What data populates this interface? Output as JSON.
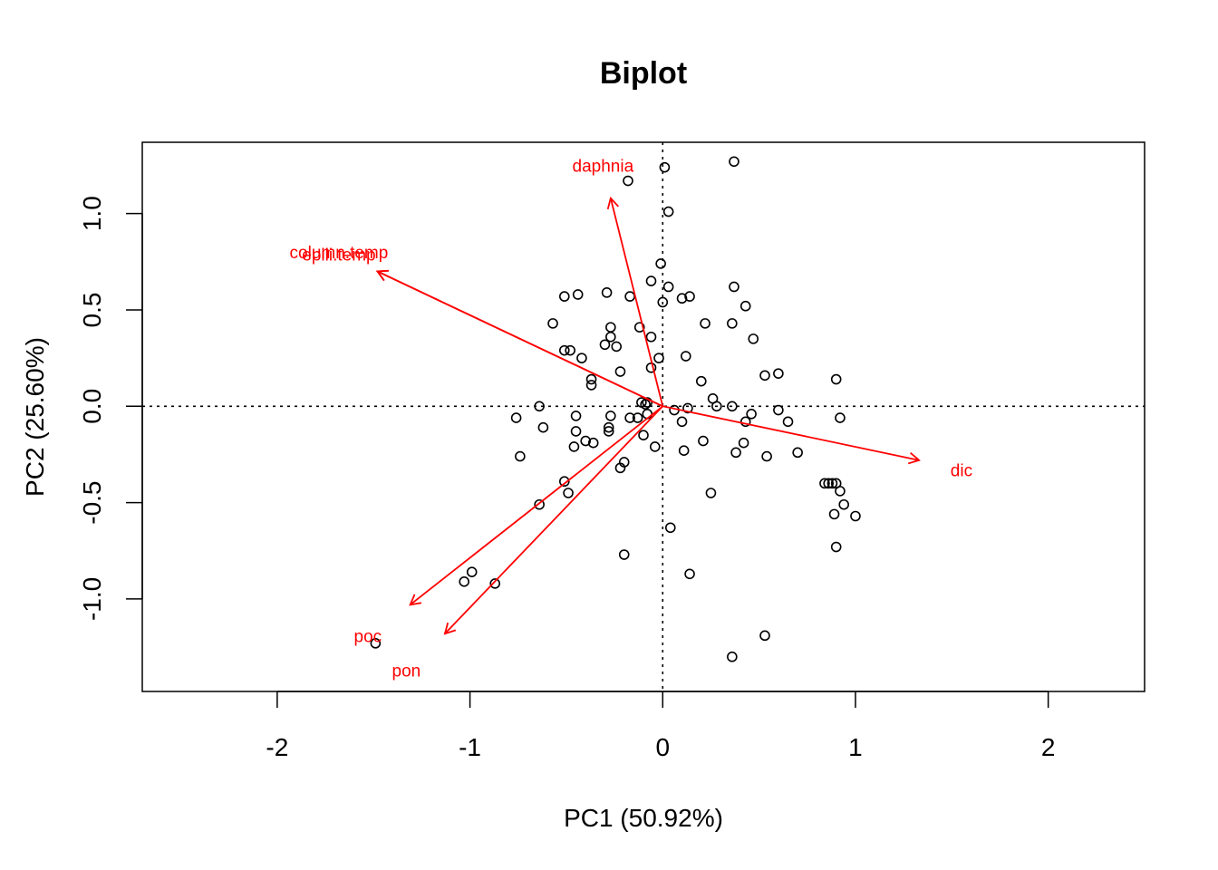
{
  "chart_data": {
    "type": "scatter",
    "title": "Biplot",
    "xlabel": "PC1 (50.92%)",
    "ylabel": "PC2 (25.60%)",
    "xlim": [
      -2.7,
      2.5
    ],
    "ylim": [
      -1.48,
      1.37
    ],
    "x_ticks": [
      -2,
      -1,
      0,
      1,
      2
    ],
    "x_tick_labels": [
      "-2",
      "-1",
      "0",
      "1",
      "2"
    ],
    "y_ticks": [
      -1.0,
      -0.5,
      0.0,
      0.5,
      1.0
    ],
    "y_tick_labels": [
      "-1.0",
      "-0.5",
      "0.0",
      "0.5",
      "1.0"
    ],
    "reference_lines": {
      "x": 0,
      "y": 0,
      "style": "dotted"
    },
    "arrow_color": "#ff0000",
    "point_color": "#000000",
    "points": [
      {
        "x": 0.01,
        "y": 1.24
      },
      {
        "x": 0.37,
        "y": 1.27
      },
      {
        "x": -0.18,
        "y": 1.17
      },
      {
        "x": 0.03,
        "y": 1.01
      },
      {
        "x": -0.01,
        "y": 0.74
      },
      {
        "x": -0.06,
        "y": 0.65
      },
      {
        "x": 0.03,
        "y": 0.62
      },
      {
        "x": 0.37,
        "y": 0.62
      },
      {
        "x": -0.51,
        "y": 0.57
      },
      {
        "x": -0.44,
        "y": 0.58
      },
      {
        "x": -0.29,
        "y": 0.59
      },
      {
        "x": -0.17,
        "y": 0.57
      },
      {
        "x": 0.0,
        "y": 0.54
      },
      {
        "x": 0.1,
        "y": 0.56
      },
      {
        "x": 0.14,
        "y": 0.57
      },
      {
        "x": 0.43,
        "y": 0.52
      },
      {
        "x": -0.57,
        "y": 0.43
      },
      {
        "x": -0.27,
        "y": 0.41
      },
      {
        "x": -0.12,
        "y": 0.41
      },
      {
        "x": 0.22,
        "y": 0.43
      },
      {
        "x": 0.36,
        "y": 0.43
      },
      {
        "x": -0.27,
        "y": 0.36
      },
      {
        "x": -0.06,
        "y": 0.36
      },
      {
        "x": 0.47,
        "y": 0.35
      },
      {
        "x": -0.3,
        "y": 0.32
      },
      {
        "x": -0.24,
        "y": 0.31
      },
      {
        "x": -0.51,
        "y": 0.29
      },
      {
        "x": -0.48,
        "y": 0.29
      },
      {
        "x": -0.42,
        "y": 0.25
      },
      {
        "x": -0.02,
        "y": 0.25
      },
      {
        "x": 0.12,
        "y": 0.26
      },
      {
        "x": -0.22,
        "y": 0.18
      },
      {
        "x": -0.06,
        "y": 0.2
      },
      {
        "x": 0.53,
        "y": 0.16
      },
      {
        "x": 0.6,
        "y": 0.17
      },
      {
        "x": 0.9,
        "y": 0.14
      },
      {
        "x": -0.37,
        "y": 0.14
      },
      {
        "x": -0.37,
        "y": 0.11
      },
      {
        "x": 0.2,
        "y": 0.13
      },
      {
        "x": -0.11,
        "y": 0.02
      },
      {
        "x": -0.09,
        "y": 0.01
      },
      {
        "x": -0.08,
        "y": 0.02
      },
      {
        "x": -0.64,
        "y": 0.0
      },
      {
        "x": 0.13,
        "y": -0.01
      },
      {
        "x": 0.26,
        "y": 0.04
      },
      {
        "x": 0.28,
        "y": 0.0
      },
      {
        "x": 0.36,
        "y": 0.0
      },
      {
        "x": 0.06,
        "y": -0.02
      },
      {
        "x": 0.6,
        "y": -0.02
      },
      {
        "x": 0.46,
        "y": -0.04
      },
      {
        "x": -0.08,
        "y": -0.04
      },
      {
        "x": -0.76,
        "y": -0.06
      },
      {
        "x": -0.45,
        "y": -0.05
      },
      {
        "x": -0.27,
        "y": -0.05
      },
      {
        "x": -0.17,
        "y": -0.06
      },
      {
        "x": -0.13,
        "y": -0.06
      },
      {
        "x": 0.1,
        "y": -0.08
      },
      {
        "x": 0.43,
        "y": -0.08
      },
      {
        "x": 0.65,
        "y": -0.08
      },
      {
        "x": 0.92,
        "y": -0.06
      },
      {
        "x": -0.62,
        "y": -0.11
      },
      {
        "x": -0.28,
        "y": -0.11
      },
      {
        "x": -0.28,
        "y": -0.13
      },
      {
        "x": -0.45,
        "y": -0.13
      },
      {
        "x": -0.1,
        "y": -0.15
      },
      {
        "x": -0.4,
        "y": -0.18
      },
      {
        "x": -0.36,
        "y": -0.19
      },
      {
        "x": 0.21,
        "y": -0.18
      },
      {
        "x": 0.42,
        "y": -0.19
      },
      {
        "x": -0.46,
        "y": -0.21
      },
      {
        "x": -0.04,
        "y": -0.21
      },
      {
        "x": 0.11,
        "y": -0.23
      },
      {
        "x": 0.38,
        "y": -0.24
      },
      {
        "x": 0.7,
        "y": -0.24
      },
      {
        "x": 0.54,
        "y": -0.26
      },
      {
        "x": -0.74,
        "y": -0.26
      },
      {
        "x": -0.2,
        "y": -0.29
      },
      {
        "x": -0.22,
        "y": -0.32
      },
      {
        "x": -0.51,
        "y": -0.39
      },
      {
        "x": -0.49,
        "y": -0.45
      },
      {
        "x": 0.84,
        "y": -0.4
      },
      {
        "x": 0.86,
        "y": -0.4
      },
      {
        "x": 0.88,
        "y": -0.4
      },
      {
        "x": 0.9,
        "y": -0.4
      },
      {
        "x": 0.92,
        "y": -0.44
      },
      {
        "x": 0.25,
        "y": -0.45
      },
      {
        "x": -0.64,
        "y": -0.51
      },
      {
        "x": 0.94,
        "y": -0.51
      },
      {
        "x": 0.89,
        "y": -0.56
      },
      {
        "x": 1.0,
        "y": -0.57
      },
      {
        "x": 0.04,
        "y": -0.63
      },
      {
        "x": 0.9,
        "y": -0.73
      },
      {
        "x": -0.2,
        "y": -0.77
      },
      {
        "x": 0.14,
        "y": -0.87
      },
      {
        "x": -0.99,
        "y": -0.86
      },
      {
        "x": -1.03,
        "y": -0.91
      },
      {
        "x": -0.87,
        "y": -0.92
      },
      {
        "x": -1.49,
        "y": -1.23
      },
      {
        "x": 0.53,
        "y": -1.19
      },
      {
        "x": 0.36,
        "y": -1.3
      }
    ],
    "loadings": [
      {
        "name": "daphnia",
        "x": -0.27,
        "y": 1.08,
        "label_x": -0.31,
        "label_y": 1.25
      },
      {
        "name": "column.temp",
        "x": -1.48,
        "y": 0.7,
        "label_x": -1.68,
        "label_y": 0.8
      },
      {
        "name": "epili.temp",
        "x": -1.48,
        "y": 0.7,
        "label_x": -1.68,
        "label_y": 0.79
      },
      {
        "name": "dic",
        "x": 1.33,
        "y": -0.28,
        "label_x": 1.55,
        "label_y": -0.33
      },
      {
        "name": "poc",
        "x": -1.31,
        "y": -1.03,
        "label_x": -1.53,
        "label_y": -1.19
      },
      {
        "name": "pon",
        "x": -1.13,
        "y": -1.18,
        "label_x": -1.33,
        "label_y": -1.37
      }
    ]
  }
}
